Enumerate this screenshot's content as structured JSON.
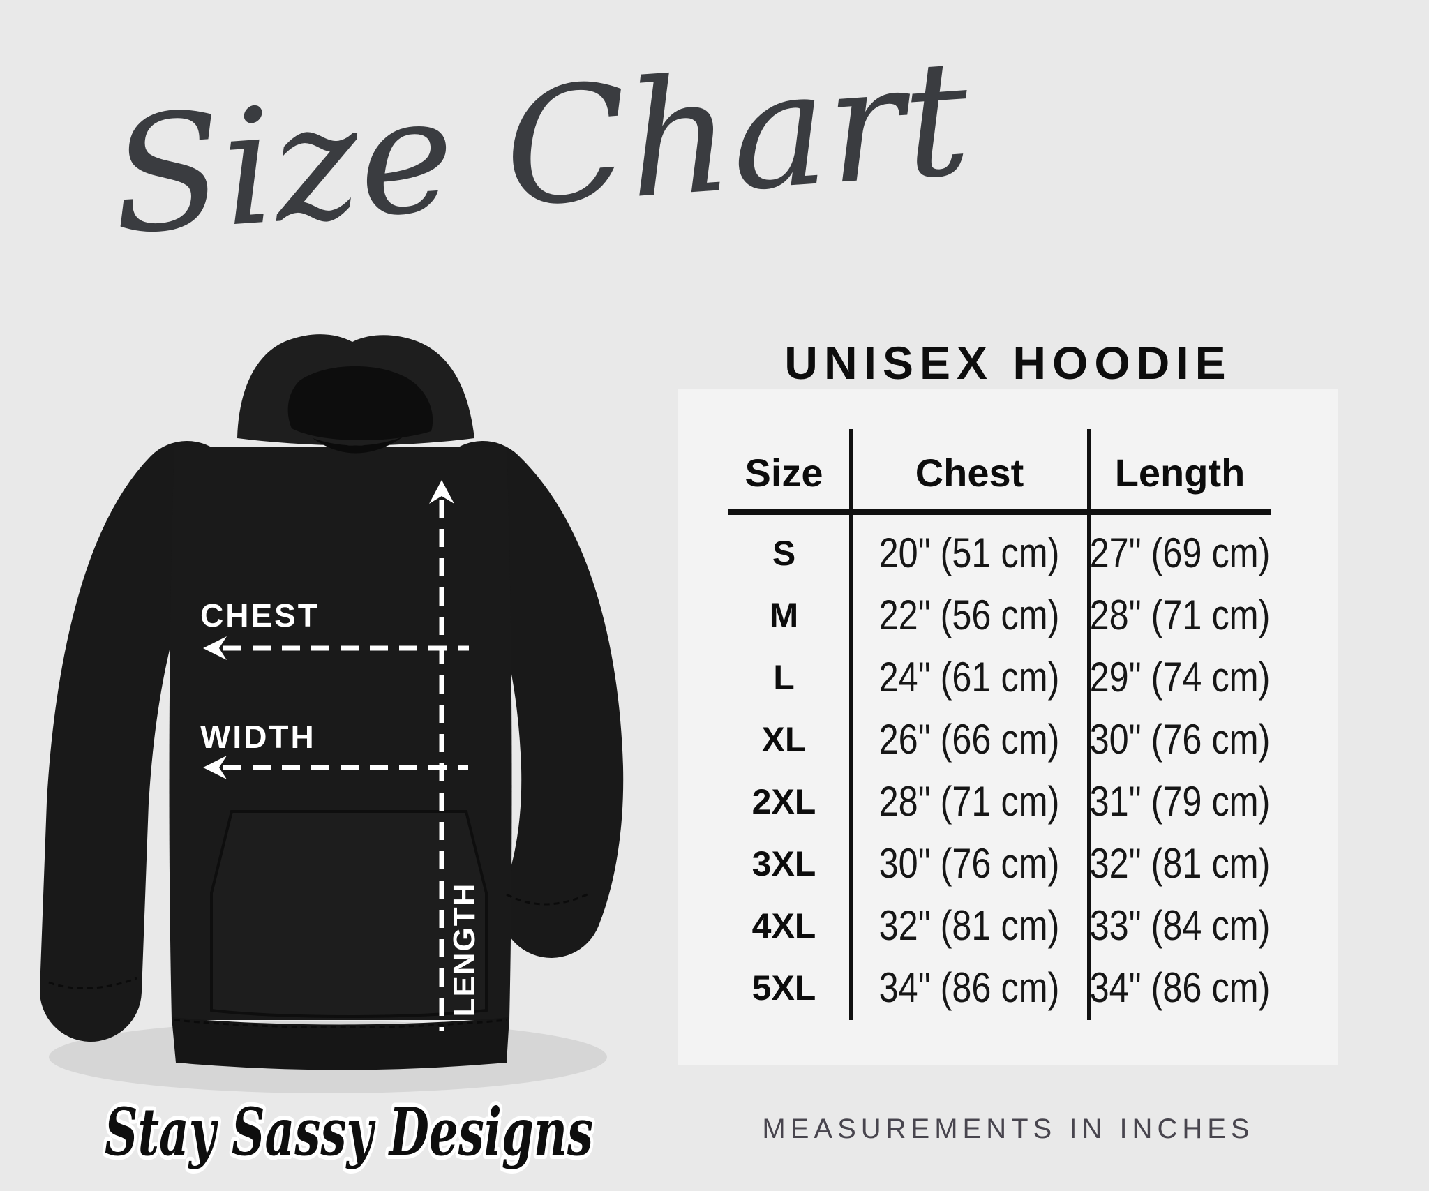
{
  "title": "Size Chart",
  "product_heading": "UNISEX HOODIE",
  "hoodie_labels": {
    "chest": "CHEST",
    "width": "WIDTH",
    "length": "LENGTH"
  },
  "brand": "Stay Sassy Designs",
  "footnote": "MEASUREMENTS IN INCHES",
  "chart_data": {
    "type": "table",
    "title": "UNISEX HOODIE",
    "columns": [
      "Size",
      "Chest",
      "Length"
    ],
    "rows": [
      [
        "S",
        "20\" (51 cm)",
        "27\" (69 cm)"
      ],
      [
        "M",
        "22\" (56 cm)",
        "28\" (71 cm)"
      ],
      [
        "L",
        "24\" (61 cm)",
        "29\" (74 cm)"
      ],
      [
        "XL",
        "26\" (66 cm)",
        "30\" (76 cm)"
      ],
      [
        "2XL",
        "28\" (71 cm)",
        "31\" (79 cm)"
      ],
      [
        "3XL",
        "30\" (76 cm)",
        "32\" (81 cm)"
      ],
      [
        "4XL",
        "32\" (81 cm)",
        "33\" (84 cm)"
      ],
      [
        "5XL",
        "34\" (86 cm)",
        "34\" (86 cm)"
      ]
    ],
    "units_note": "MEASUREMENTS IN INCHES"
  },
  "colors": {
    "page_bg": "#e9e9e9",
    "panel_bg": "#f3f3f3",
    "ink": "#101010",
    "title_ink": "#3a3c40",
    "note_ink": "#48454e",
    "hoodie_black": "#1a1a1a",
    "label_white": "#ffffff"
  }
}
